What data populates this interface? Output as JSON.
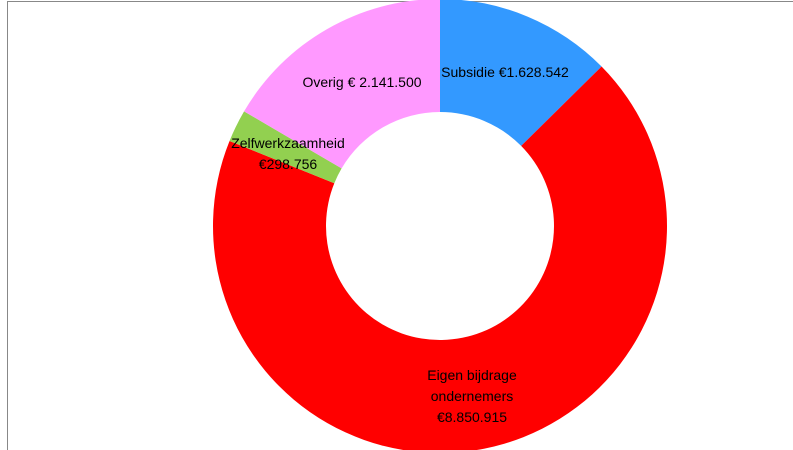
{
  "chart_data": {
    "type": "donut",
    "categories": [
      "Subsidie",
      "Eigen bijdrage ondernemers",
      "Zelfwerkzaamheid",
      "Overig"
    ],
    "values": [
      1628542,
      8850915,
      298756,
      2141500
    ],
    "value_labels": [
      "€1.628.542",
      "€8.850.915",
      "€298.756",
      "€ 2.141.500"
    ],
    "colors": [
      "#3399ff",
      "#ff0000",
      "#92d050",
      "#ff99ff"
    ]
  }
}
